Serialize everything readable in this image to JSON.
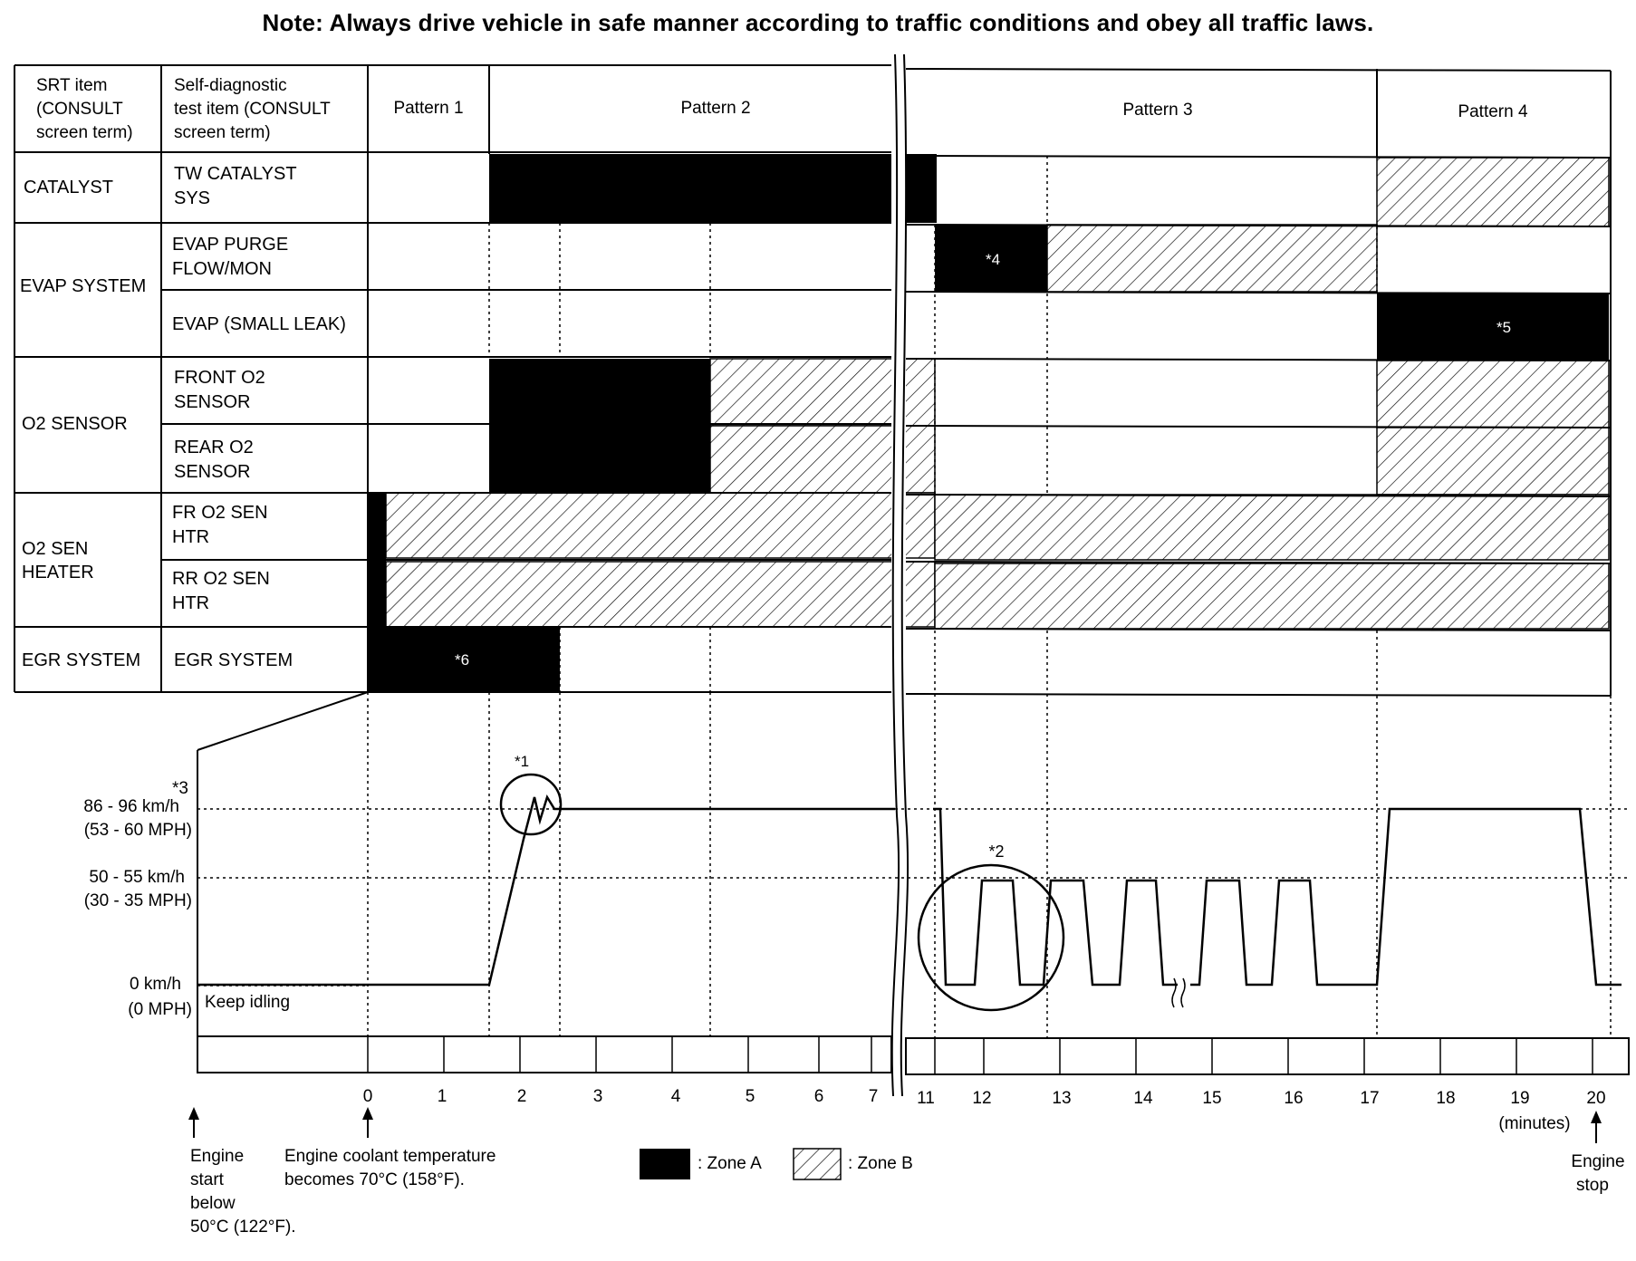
{
  "note": "Note: Always drive vehicle in safe manner according to traffic conditions and obey all traffic laws.",
  "header": {
    "srt_item": [
      "SRT item",
      "(CONSULT",
      "screen term)"
    ],
    "self_diag": [
      "Self-diagnostic",
      "test item (CONSULT",
      "screen term)"
    ],
    "patterns": [
      "Pattern 1",
      "Pattern 2",
      "Pattern 3",
      "Pattern 4"
    ]
  },
  "groups": [
    {
      "lines": [
        "CATALYST"
      ]
    },
    {
      "lines": [
        "EVAP SYSTEM"
      ]
    },
    {
      "lines": [
        "O2 SENSOR"
      ]
    },
    {
      "lines": [
        "O2 SEN",
        "HEATER"
      ]
    },
    {
      "lines": [
        "EGR SYSTEM"
      ]
    }
  ],
  "items": [
    {
      "lines": [
        "TW CATALYST",
        "SYS"
      ]
    },
    {
      "lines": [
        "EVAP PURGE",
        "FLOW/MON"
      ]
    },
    {
      "lines": [
        "EVAP (SMALL LEAK)"
      ]
    },
    {
      "lines": [
        "FRONT O2",
        "SENSOR"
      ]
    },
    {
      "lines": [
        "REAR O2",
        "SENSOR"
      ]
    },
    {
      "lines": [
        "FR O2 SEN",
        "HTR"
      ]
    },
    {
      "lines": [
        "RR O2 SEN",
        "HTR"
      ]
    },
    {
      "lines": [
        "EGR SYSTEM"
      ]
    }
  ],
  "zone_notes": {
    "n4": "*4",
    "n5": "*5",
    "n6": "*6"
  },
  "speed_labels": {
    "s1": "86 - 96 km/h",
    "s1b": "(53 - 60 MPH)",
    "s2": "50 - 55 km/h",
    "s2b": "(30 - 35 MPH)",
    "s3": "0 km/h",
    "s3b": "(0 MPH)",
    "n3": "*3",
    "n1": "*1",
    "n2": "*2",
    "keep_idling": "Keep idling"
  },
  "time_ticks": [
    "0",
    "1",
    "2",
    "3",
    "4",
    "5",
    "6",
    "7",
    "11",
    "12",
    "13",
    "14",
    "15",
    "16",
    "17",
    "18",
    "19",
    "20"
  ],
  "minutes": "(minutes)",
  "footnotes": {
    "engine_start": [
      "Engine",
      "start",
      "below",
      "50°C (122°F)."
    ],
    "coolant": [
      "Engine coolant temperature",
      "becomes 70°C (158°F)."
    ],
    "engine_stop": [
      "Engine",
      "stop"
    ]
  },
  "legend": {
    "zone_a": ": Zone A",
    "zone_b": ": Zone B"
  }
}
